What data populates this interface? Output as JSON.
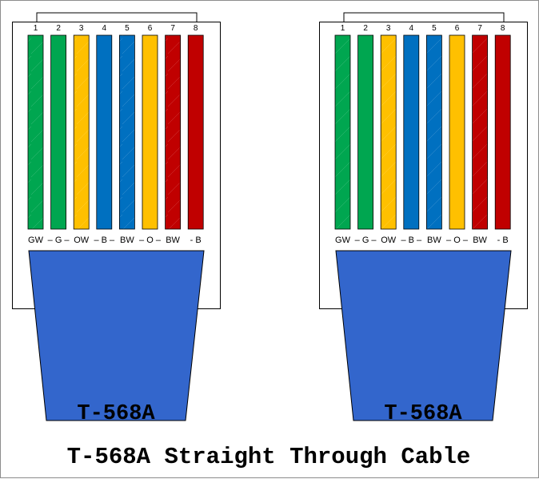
{
  "title": "T-568A Straight Through Cable",
  "colors": {
    "white": "#ffffff",
    "green": "#00a650",
    "orange": "#ffc000",
    "blue": "#0070c0",
    "brown": "#c00000",
    "jacket": "#3366cc"
  },
  "connectors": [
    {
      "label": "T-568A",
      "pins": [
        "1",
        "2",
        "3",
        "4",
        "5",
        "6",
        "7",
        "8"
      ],
      "wires": [
        {
          "color": "green",
          "striped": true
        },
        {
          "color": "green",
          "striped": false
        },
        {
          "color": "orange",
          "striped": true
        },
        {
          "color": "blue",
          "striped": false
        },
        {
          "color": "blue",
          "striped": true
        },
        {
          "color": "orange",
          "striped": false
        },
        {
          "color": "brown",
          "striped": true
        },
        {
          "color": "brown",
          "striped": false
        }
      ],
      "codes": [
        "GW",
        "– G –",
        "OW",
        "– B –",
        "BW",
        "– O –",
        "BW",
        "- B"
      ]
    },
    {
      "label": "T-568A",
      "pins": [
        "1",
        "2",
        "3",
        "4",
        "5",
        "6",
        "7",
        "8"
      ],
      "wires": [
        {
          "color": "green",
          "striped": true
        },
        {
          "color": "green",
          "striped": false
        },
        {
          "color": "orange",
          "striped": true
        },
        {
          "color": "blue",
          "striped": false
        },
        {
          "color": "blue",
          "striped": true
        },
        {
          "color": "orange",
          "striped": false
        },
        {
          "color": "brown",
          "striped": true
        },
        {
          "color": "brown",
          "striped": false
        }
      ],
      "codes": [
        "GW",
        "– G –",
        "OW",
        "– B –",
        "BW",
        "– O –",
        "BW",
        "- B"
      ]
    }
  ]
}
